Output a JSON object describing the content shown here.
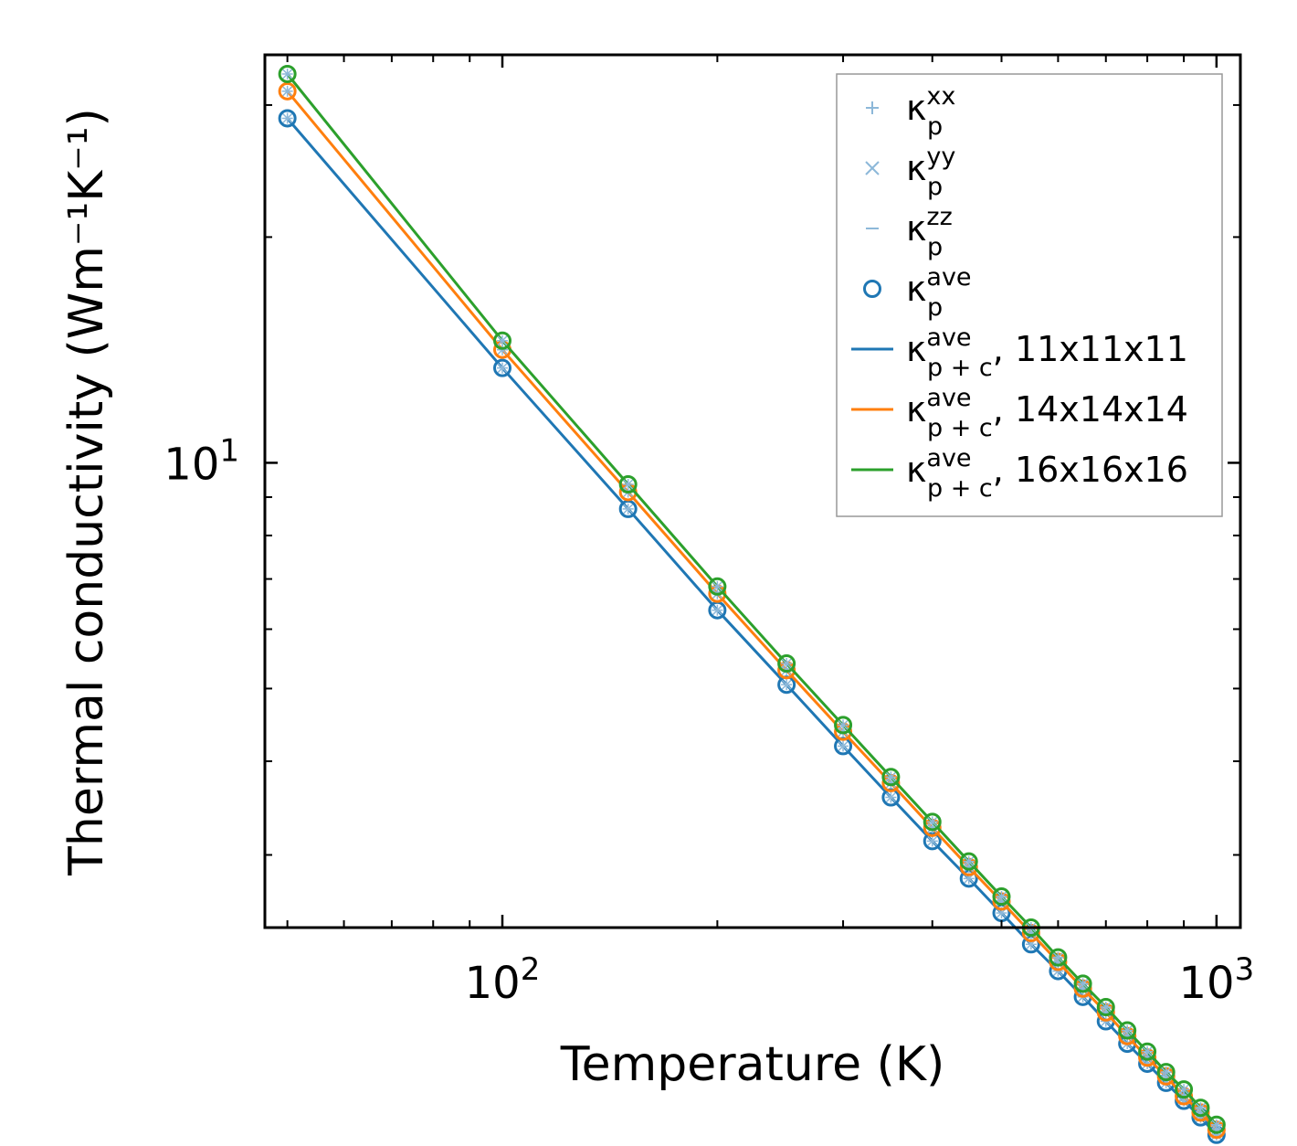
{
  "chart_data": {
    "type": "line",
    "xscale": "log",
    "yscale": "log",
    "xlabel": "Temperature (K)",
    "ylabel": "Thermal conductivity (Wm⁻¹K⁻¹)",
    "xlim": [
      46.5,
      1080
    ],
    "ylim": [
      2.4,
      35
    ],
    "x_ticks": [
      {
        "base": "10",
        "exp": "2",
        "value": 100
      },
      {
        "base": "10",
        "exp": "3",
        "value": 1000
      }
    ],
    "y_ticks": [
      {
        "base": "10",
        "exp": "1",
        "value": 10
      }
    ],
    "x": [
      50,
      100,
      150,
      200,
      250,
      300,
      350,
      400,
      450,
      500,
      550,
      600,
      650,
      700,
      750,
      800,
      850,
      900,
      950,
      1000
    ],
    "series": [
      {
        "name": "κp+c ave, 11x11x11",
        "color": "#1f77b4",
        "kind": "line+marker",
        "kappa_50K": 28.8
      },
      {
        "name": "κp+c ave, 14x14x14",
        "color": "#ff7f0e",
        "kind": "line+marker",
        "kappa_50K": 31.3
      },
      {
        "name": "κp+c ave, 16x16x16",
        "color": "#2ca02c",
        "kind": "line+marker",
        "kappa_50K": 33.0
      }
    ],
    "point_values": {
      "11x11x11": [
        28.8,
        13.38,
        8.68,
        6.36,
        5.06,
        4.19,
        3.58,
        3.13,
        2.79,
        2.51,
        2.28,
        2.1,
        1.94,
        1.8,
        1.68,
        1.58,
        1.49,
        1.41,
        1.34,
        1.27
      ],
      "14x14x14": [
        31.3,
        14.15,
        9.14,
        6.69,
        5.29,
        4.38,
        3.74,
        3.26,
        2.89,
        2.6,
        2.36,
        2.16,
        1.99,
        1.85,
        1.72,
        1.61,
        1.52,
        1.43,
        1.36,
        1.29
      ],
      "16x16x16": [
        33.0,
        14.55,
        9.36,
        6.84,
        5.4,
        4.47,
        3.81,
        3.32,
        2.94,
        2.64,
        2.4,
        2.19,
        2.02,
        1.88,
        1.75,
        1.64,
        1.54,
        1.46,
        1.38,
        1.31
      ]
    },
    "legend": {
      "position": "top-right",
      "entries": [
        {
          "symbol": "plus",
          "color": "#8db8d9",
          "main": "κ",
          "sup": "xx",
          "sub": "p",
          "rest": ""
        },
        {
          "symbol": "cross",
          "color": "#8db8d9",
          "main": "κ",
          "sup": "yy",
          "sub": "p",
          "rest": ""
        },
        {
          "symbol": "dash",
          "color": "#8db8d9",
          "main": "κ",
          "sup": "zz",
          "sub": "p",
          "rest": ""
        },
        {
          "symbol": "circle",
          "color": "#1f77b4",
          "main": "κ",
          "sup": "ave",
          "sub": "p",
          "rest": ""
        },
        {
          "symbol": "line",
          "color": "#1f77b4",
          "main": "κ",
          "sup": "ave",
          "sub": "p + c",
          "rest": ", 11x11x11"
        },
        {
          "symbol": "line",
          "color": "#ff7f0e",
          "main": "κ",
          "sup": "ave",
          "sub": "p + c",
          "rest": ", 14x14x14"
        },
        {
          "symbol": "line",
          "color": "#2ca02c",
          "main": "κ",
          "sup": "ave",
          "sub": "p + c",
          "rest": ", 16x16x16"
        }
      ]
    }
  }
}
